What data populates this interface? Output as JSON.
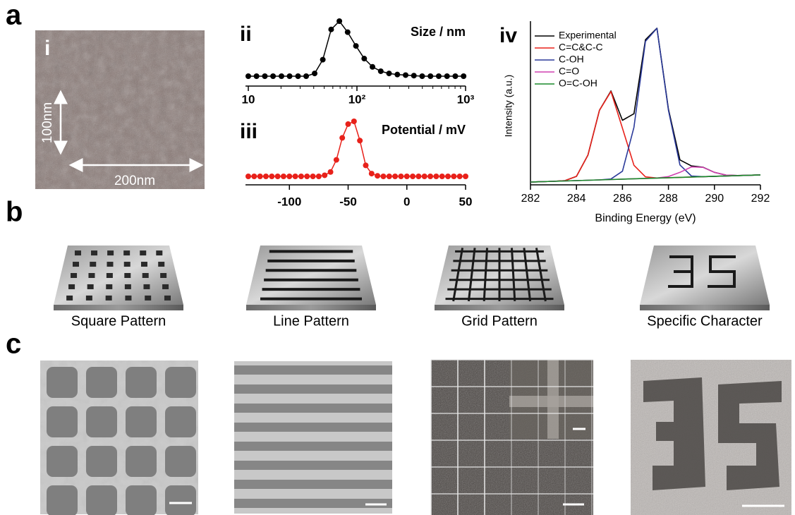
{
  "figure": {
    "panels": [
      "a",
      "b",
      "c"
    ],
    "image_i": {
      "label": "i",
      "scale_vertical": "100nm",
      "scale_horizontal": "200nm"
    },
    "patterns": [
      "Square Pattern",
      "Line Pattern",
      "Grid Pattern",
      "Specific Character"
    ]
  },
  "chart_data": [
    {
      "type": "line",
      "label": "ii",
      "title": "Size / nm",
      "xscale": "log",
      "markers": true,
      "x": [
        10,
        11.9,
        14.2,
        16.9,
        20.2,
        24,
        28.7,
        34.1,
        40.8,
        48.5,
        57.9,
        68.9,
        82.1,
        97.9,
        116.7,
        139,
        165.7,
        197.5,
        235.4,
        280.6,
        334.4,
        398.6,
        475.1,
        566.2,
        674.9,
        804.4,
        958.8
      ],
      "series": [
        {
          "color": "#000000",
          "values": [
            0,
            0,
            0,
            0,
            0,
            0,
            0,
            0,
            5,
            30,
            85,
            100,
            80,
            55,
            32,
            17,
            9,
            5,
            3,
            2,
            1,
            0,
            0,
            0,
            0,
            0,
            0
          ]
        }
      ],
      "xlim": [
        10,
        1000
      ],
      "xticks": [
        10,
        {
          "value": 100,
          "label": "10²"
        },
        {
          "value": 1000,
          "label": "10³"
        }
      ]
    },
    {
      "type": "line",
      "label": "iii",
      "title": "Potential / mV",
      "markers": true,
      "x": [
        -135,
        -130,
        -125,
        -120,
        -115,
        -110,
        -105,
        -100,
        -95,
        -90,
        -85,
        -80,
        -75,
        -70,
        -65,
        -60,
        -55,
        -50,
        -45,
        -40,
        -35,
        -30,
        -25,
        -20,
        -15,
        -10,
        -5,
        0,
        5,
        10,
        15,
        20,
        25,
        30,
        35,
        40,
        45,
        50
      ],
      "series": [
        {
          "color": "#e8211a",
          "values": [
            0,
            0,
            0,
            0,
            0,
            0,
            0,
            0,
            0,
            0,
            0,
            0,
            0,
            2,
            8,
            30,
            70,
            95,
            100,
            65,
            20,
            5,
            1,
            0,
            0,
            0,
            0,
            0,
            0,
            0,
            0,
            0,
            0,
            0,
            0,
            0,
            0,
            0
          ]
        }
      ],
      "xlim": [
        -135,
        50
      ],
      "xticks": [
        -100,
        -50,
        0,
        50
      ]
    },
    {
      "type": "line",
      "label": "iv",
      "x_label": "Binding Energy (eV)",
      "y_label": "Intensity (a.u.)",
      "legend": "top-left",
      "x": [
        282,
        282.5,
        283,
        283.5,
        284,
        284.5,
        285,
        285.5,
        286,
        286.5,
        287,
        287.5,
        288,
        288.5,
        289,
        289.5,
        290,
        290.5,
        291,
        291.5,
        292
      ],
      "series": [
        {
          "name": "Experimental",
          "color": "#000000",
          "values": [
            0,
            0.4,
            0.8,
            1.6,
            6.3,
            30.2,
            80.3,
            101.9,
            69.1,
            76.4,
            159.2,
            172.1,
            81.5,
            24.7,
            18,
            16.6,
            10.8,
            7.7,
            7.3,
            7.6,
            8
          ]
        },
        {
          "name": "C=C&C-C",
          "color": "#e8211a",
          "values": [
            0,
            0.4,
            0.8,
            1.6,
            6.3,
            30.2,
            80.3,
            101.3,
            60.2,
            18.7,
            5.8,
            4.5,
            4.8,
            5.2,
            5.6,
            6,
            6.4,
            6.8,
            7.2,
            7.6,
            8
          ]
        },
        {
          "name": "C-OH",
          "color": "#2b3a9a",
          "values": [
            0,
            0.4,
            0.8,
            1.2,
            1.6,
            2,
            2.4,
            3.4,
            12.1,
            61.3,
            157.4,
            172,
            80.2,
            19.1,
            6.7,
            6,
            6.4,
            6.8,
            7.2,
            7.6,
            8
          ]
        },
        {
          "name": "C=O",
          "color": "#d040b0",
          "values": [
            0,
            0.4,
            0.8,
            1.2,
            1.6,
            2,
            2.4,
            2.8,
            3.2,
            3.6,
            4,
            4.5,
            6.1,
            10.8,
            16.9,
            16.4,
            10.8,
            7.7,
            7.3,
            7.6,
            8
          ]
        },
        {
          "name": "O=C-OH",
          "color": "#1a8a2a",
          "values": [
            0,
            0.4,
            0.8,
            1.2,
            1.6,
            2,
            2.4,
            2.8,
            3.2,
            3.6,
            4,
            4.4,
            4.8,
            5.2,
            5.6,
            6,
            6.4,
            6.8,
            7.2,
            7.6,
            8
          ]
        }
      ],
      "xlim": [
        282,
        292
      ],
      "xticks": [
        282,
        284,
        286,
        288,
        290,
        292
      ]
    }
  ]
}
